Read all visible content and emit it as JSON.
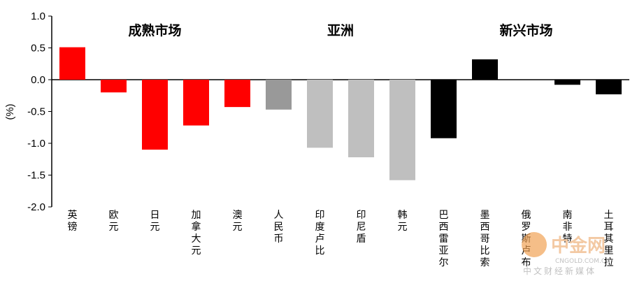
{
  "chart_data": {
    "type": "bar",
    "ylabel": "(%)",
    "ylim": [
      -2.0,
      1.0
    ],
    "yticks": [
      1.0,
      0.5,
      0.0,
      -0.5,
      -1.0,
      -1.5,
      -2.0
    ],
    "ytick_labels": [
      "1.0",
      "0.5",
      "0.0",
      "-0.5",
      "-1.0",
      "-1.5",
      "-2.0"
    ],
    "grid": false,
    "groups": [
      {
        "label": "成熟市场"
      },
      {
        "label": "亚洲"
      },
      {
        "label": "新兴市场"
      }
    ],
    "categories": [
      "英镑",
      "欧元",
      "日元",
      "加拿大元",
      "澳元",
      "人民币",
      "印度卢比",
      "印尼盾",
      "韩元",
      "巴西雷亚尔",
      "墨西哥比索",
      "俄罗斯卢布",
      "南非特",
      "土耳其里拉"
    ],
    "values": [
      0.51,
      -0.2,
      -1.1,
      -0.72,
      -0.43,
      -0.47,
      -1.07,
      -1.22,
      -1.58,
      -0.92,
      0.32,
      0.0,
      -0.08,
      -0.23
    ],
    "colors": [
      "#ff0000",
      "#ff0000",
      "#ff0000",
      "#ff0000",
      "#ff0000",
      "#999999",
      "#bfbfbf",
      "#bfbfbf",
      "#bfbfbf",
      "#000000",
      "#000000",
      "#000000",
      "#000000",
      "#000000"
    ]
  },
  "watermark": {
    "name": "中金网",
    "domain": "CNGOLD.COM.CN",
    "tagline": "中文财经新媒体"
  }
}
